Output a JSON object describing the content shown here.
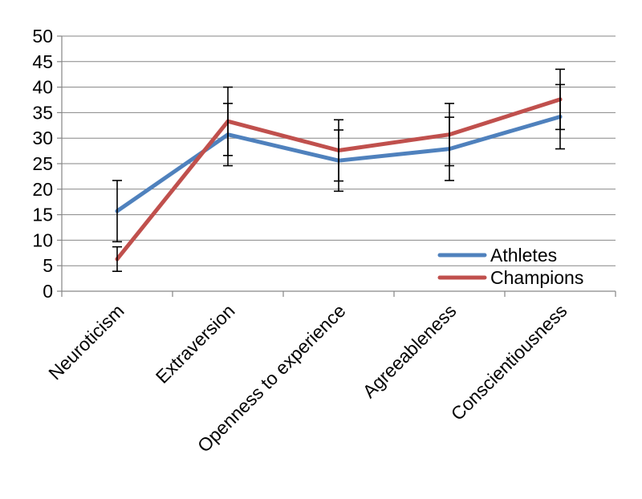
{
  "chart_data": {
    "type": "line",
    "categories": [
      "Neuroticism",
      "Extraversion",
      "Openness to experience",
      "Agreeableness",
      "Conscientiousness"
    ],
    "ylim": [
      0,
      50
    ],
    "yticks": [
      0,
      5,
      10,
      15,
      20,
      25,
      30,
      35,
      40,
      45,
      50
    ],
    "grid": true,
    "legend_position": "bottom-right",
    "series": [
      {
        "name": "Athletes",
        "color": "#4F81BD",
        "values": [
          15.7,
          30.7,
          25.6,
          27.9,
          34.2
        ],
        "error": [
          6.0,
          6.1,
          6.0,
          6.2,
          6.3
        ]
      },
      {
        "name": "Champions",
        "color": "#C0504D",
        "values": [
          6.3,
          33.3,
          27.6,
          30.7,
          37.6
        ],
        "error": [
          2.4,
          6.7,
          6.0,
          6.1,
          5.9
        ]
      }
    ]
  }
}
